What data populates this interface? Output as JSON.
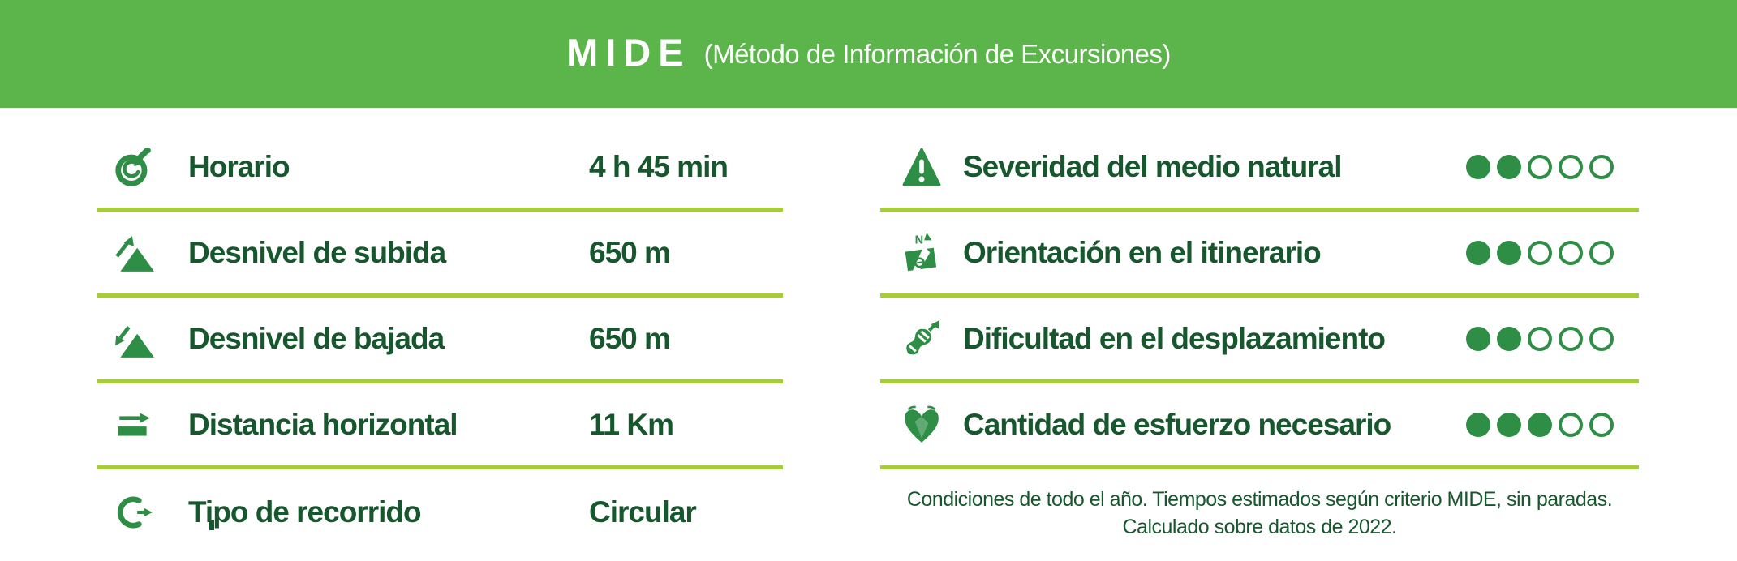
{
  "header": {
    "brand": "MIDE",
    "subtitle": "(Método de Información de Excursiones)"
  },
  "colors": {
    "header_green": "#5bb54a",
    "divider_green": "#a4cc3b",
    "text_dark_green": "#17572e",
    "icon_green": "#2e8e46"
  },
  "left_column": {
    "rows": [
      {
        "icon": "stopwatch-icon",
        "label": "Horario",
        "value": "4 h 45 min"
      },
      {
        "icon": "mountain-ascent-icon",
        "label": "Desnivel de subida",
        "value": "650 m"
      },
      {
        "icon": "mountain-descent-icon",
        "label": "Desnivel de bajada",
        "value": "650 m"
      },
      {
        "icon": "horizontal-arrow-icon",
        "label": "Distancia horizontal",
        "value": "11 Km"
      },
      {
        "icon": "circular-route-icon",
        "label": "Tipo de recorrido",
        "value": "Circular"
      }
    ]
  },
  "right_column": {
    "rows": [
      {
        "icon": "warning-triangle-icon",
        "label": "Severidad del medio natural",
        "rating": 2,
        "max": 5
      },
      {
        "icon": "map-compass-icon",
        "label": "Orientación en el itinerario",
        "rating": 2,
        "max": 5
      },
      {
        "icon": "boot-sole-icon",
        "label": "Dificultad en el desplazamiento",
        "rating": 2,
        "max": 5
      },
      {
        "icon": "heart-effort-icon",
        "label": "Cantidad de esfuerzo necesario",
        "rating": 3,
        "max": 5
      }
    ],
    "footnote": {
      "line1": "Condiciones de todo el año. Tiempos estimados según criterio MIDE, sin paradas.",
      "line2": "Calculado sobre datos de 2022."
    }
  }
}
